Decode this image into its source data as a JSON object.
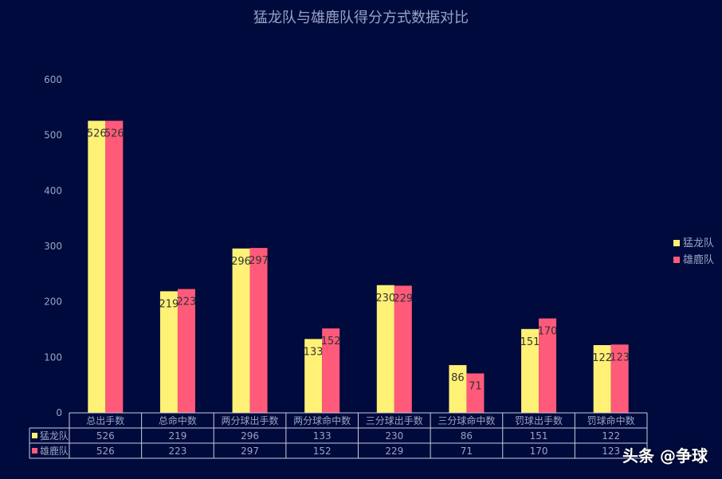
{
  "chart_data": {
    "type": "bar",
    "title": "猛龙队与雄鹿队得分方式数据对比",
    "categories": [
      "总出手数",
      "总命中数",
      "两分球出手数",
      "两分球命中数",
      "三分球出手数",
      "三分球命中数",
      "罚球出手数",
      "罚球命中数"
    ],
    "series": [
      {
        "name": "猛龙队",
        "color": "#fff176",
        "values": [
          526,
          219,
          296,
          133,
          230,
          86,
          151,
          122
        ]
      },
      {
        "name": "雄鹿队",
        "color": "#ff5a7a",
        "values": [
          526,
          223,
          297,
          152,
          229,
          71,
          170,
          123
        ]
      }
    ],
    "ylim": [
      0,
      600
    ],
    "yticks": [
      0,
      100,
      200,
      300,
      400,
      500,
      600
    ],
    "legend": "right",
    "data_table": true
  },
  "watermark": "头条 @争球"
}
